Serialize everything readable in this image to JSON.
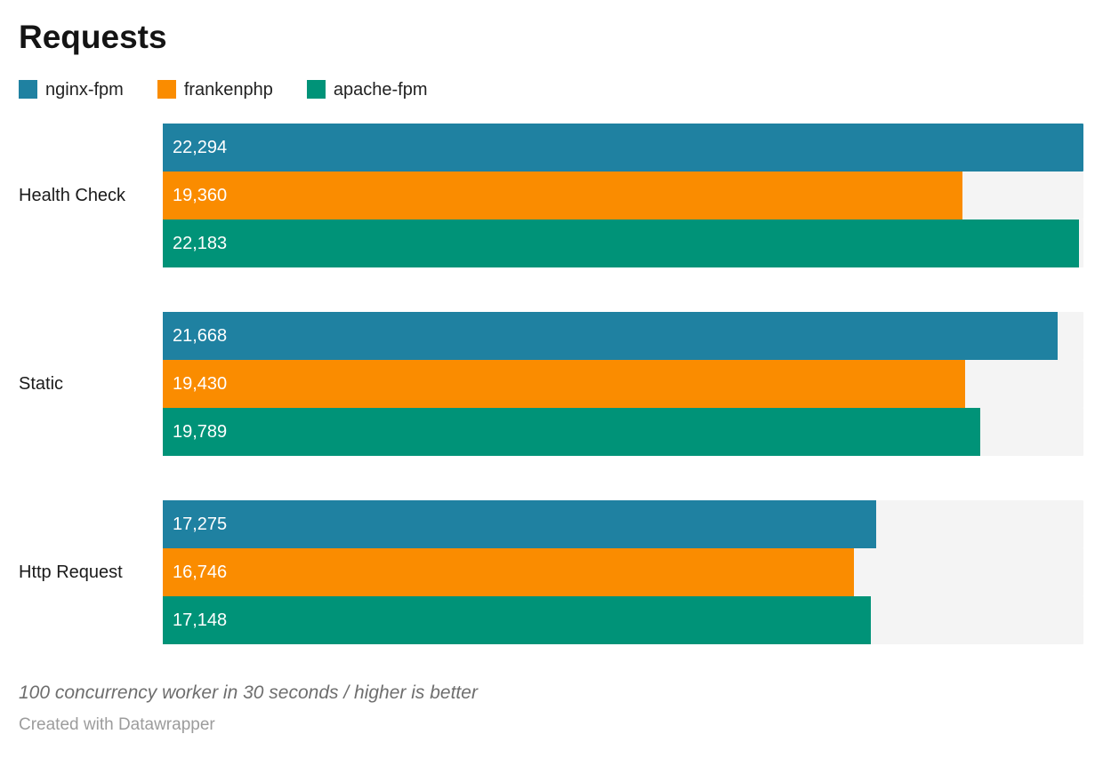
{
  "title": "Requests",
  "legend": [
    {
      "label": "nginx-fpm",
      "color": "#1f81a1"
    },
    {
      "label": "frankenphp",
      "color": "#fa8c00"
    },
    {
      "label": "apache-fpm",
      "color": "#009378"
    }
  ],
  "chart_data": {
    "type": "bar",
    "orientation": "horizontal",
    "title": "Requests",
    "categories": [
      "Health Check",
      "Static",
      "Http Request"
    ],
    "series": [
      {
        "name": "nginx-fpm",
        "color": "#1f81a1",
        "values": [
          22294,
          21668,
          17275
        ],
        "labels": [
          "22,294",
          "21,668",
          "17,275"
        ]
      },
      {
        "name": "frankenphp",
        "color": "#fa8c00",
        "values": [
          19360,
          19430,
          16746
        ],
        "labels": [
          "19,360",
          "19,430",
          "16,746"
        ]
      },
      {
        "name": "apache-fpm",
        "color": "#009378",
        "values": [
          22183,
          19789,
          17148
        ],
        "labels": [
          "22,183",
          "19,789",
          "17,148"
        ]
      }
    ],
    "xlim": [
      0,
      22294
    ],
    "grid": false,
    "legend_position": "top",
    "track_color": "#f4f4f4",
    "value_label_color": "#ffffff"
  },
  "footer": {
    "note": "100 concurrency worker in 30 seconds / higher is better",
    "credit": "Created with Datawrapper"
  }
}
